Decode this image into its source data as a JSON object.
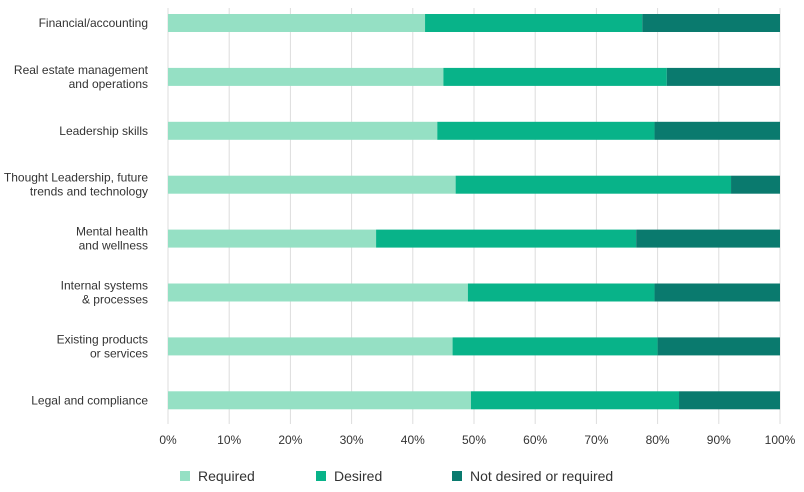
{
  "chart_data": {
    "type": "bar",
    "orientation": "horizontal",
    "stacked": true,
    "title": "",
    "xlabel": "",
    "ylabel": "",
    "categories": [
      [
        "Financial/accounting"
      ],
      [
        "Real estate management",
        "and operations"
      ],
      [
        "Leadership skills"
      ],
      [
        "Thought Leadership, future",
        "trends and technology"
      ],
      [
        "Mental health",
        "and wellness"
      ],
      [
        "Internal systems",
        "& processes"
      ],
      [
        "Existing products",
        "or services"
      ],
      [
        "Legal and compliance"
      ]
    ],
    "series": [
      {
        "name": "Required",
        "color": "#95e0c4",
        "values": [
          42,
          45,
          44,
          47,
          34,
          49,
          46.5,
          49.5
        ]
      },
      {
        "name": "Desired",
        "color": "#08b389",
        "values": [
          35.5,
          36.5,
          35.5,
          45,
          42.5,
          30.5,
          33.5,
          34
        ]
      },
      {
        "name": "Not desired or required",
        "color": "#0a7a6e",
        "values": [
          22.5,
          18.5,
          20.5,
          8,
          23.5,
          20.5,
          20,
          16.5
        ]
      }
    ],
    "xlim": [
      0,
      100
    ],
    "xticks": [
      0,
      10,
      20,
      30,
      40,
      50,
      60,
      70,
      80,
      90,
      100
    ],
    "xtick_format": "{v}%",
    "grid": true,
    "legend": "bottom"
  }
}
